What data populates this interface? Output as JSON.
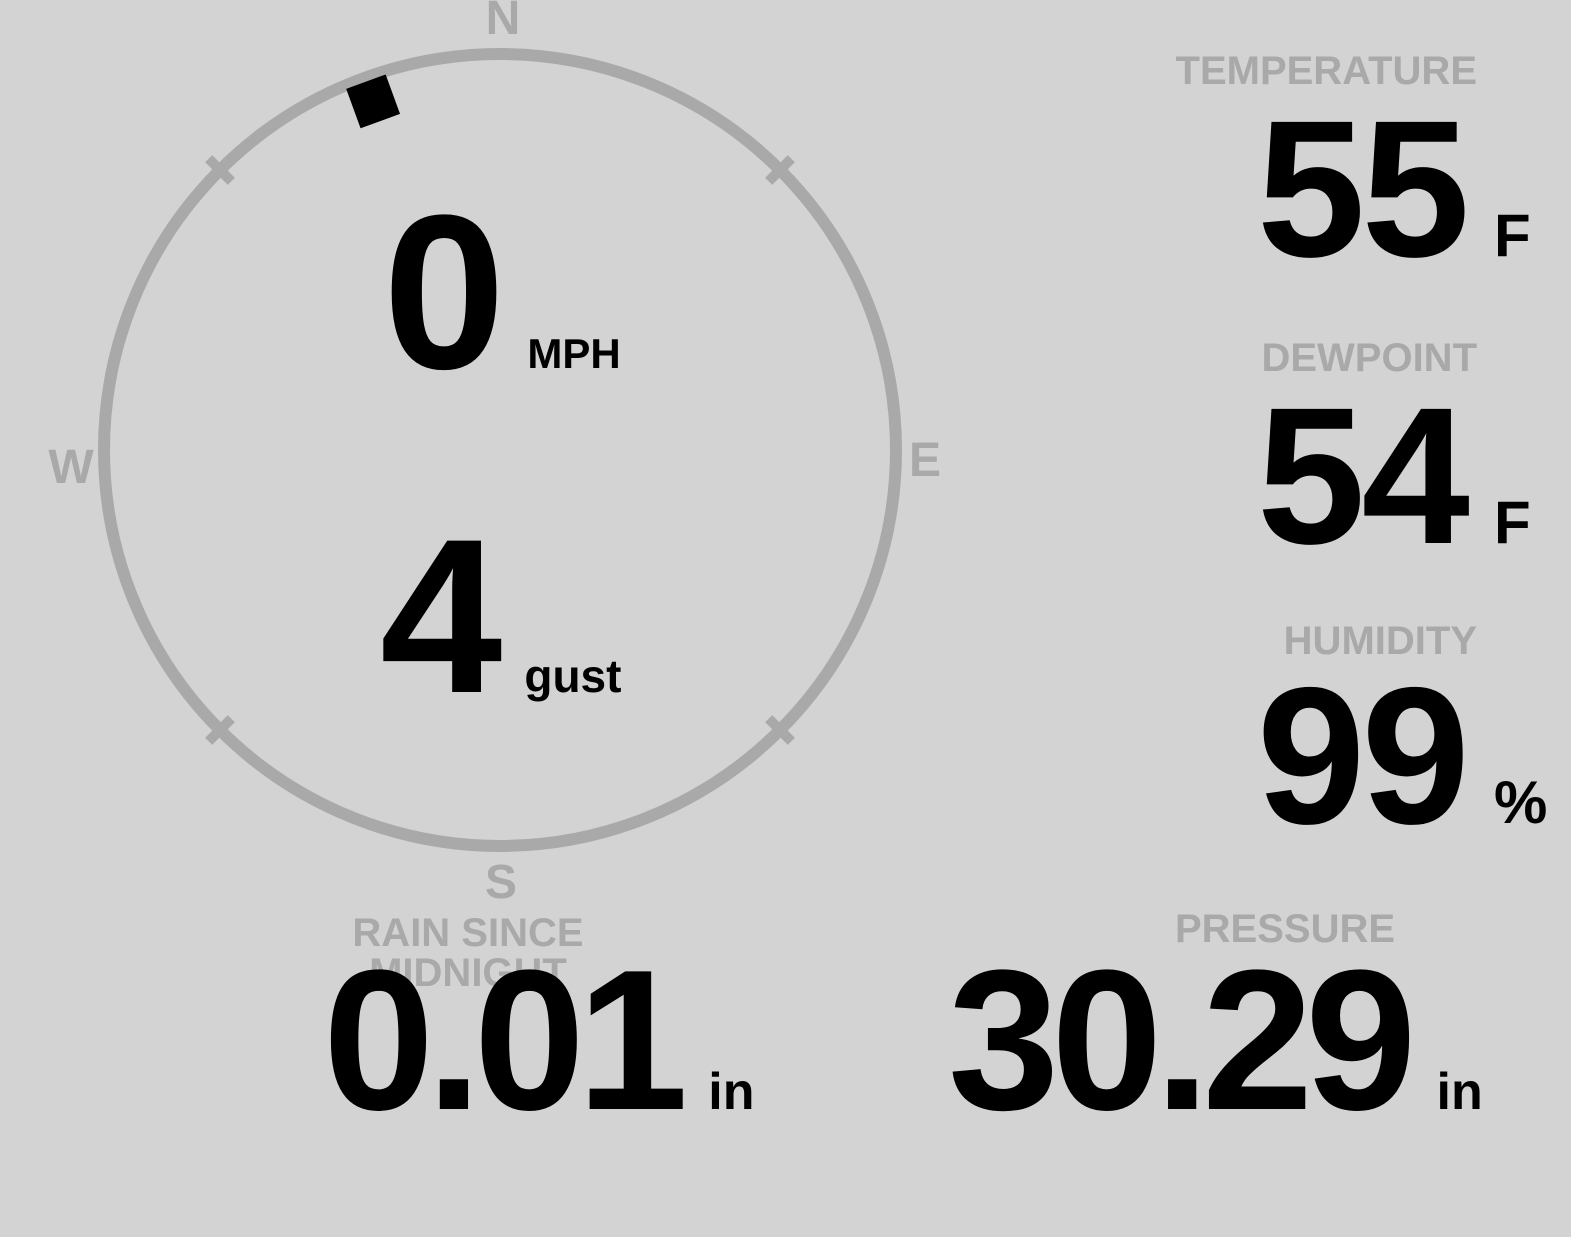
{
  "colors": {
    "background": "#d3d3d3",
    "muted": "#a9a9a9",
    "ink": "#000000"
  },
  "wind": {
    "direction_degrees": 340,
    "compass_labels": {
      "north": "N",
      "east": "E",
      "south": "S",
      "west": "W"
    },
    "speed": {
      "value": "0",
      "unit": "MPH"
    },
    "gust": {
      "value": "4",
      "unit": "gust"
    }
  },
  "stats": [
    {
      "label": "TEMPERATURE",
      "value": "55",
      "unit": "F"
    },
    {
      "label": "DEWPOINT",
      "value": "54",
      "unit": "F"
    },
    {
      "label": "HUMIDITY",
      "value": "99",
      "unit": "%"
    }
  ],
  "bottom_stats": [
    {
      "label": "RAIN SINCE MIDNIGHT",
      "value": "0.01",
      "unit": "in"
    },
    {
      "label": "PRESSURE",
      "value": "30.29",
      "unit": "in"
    }
  ]
}
